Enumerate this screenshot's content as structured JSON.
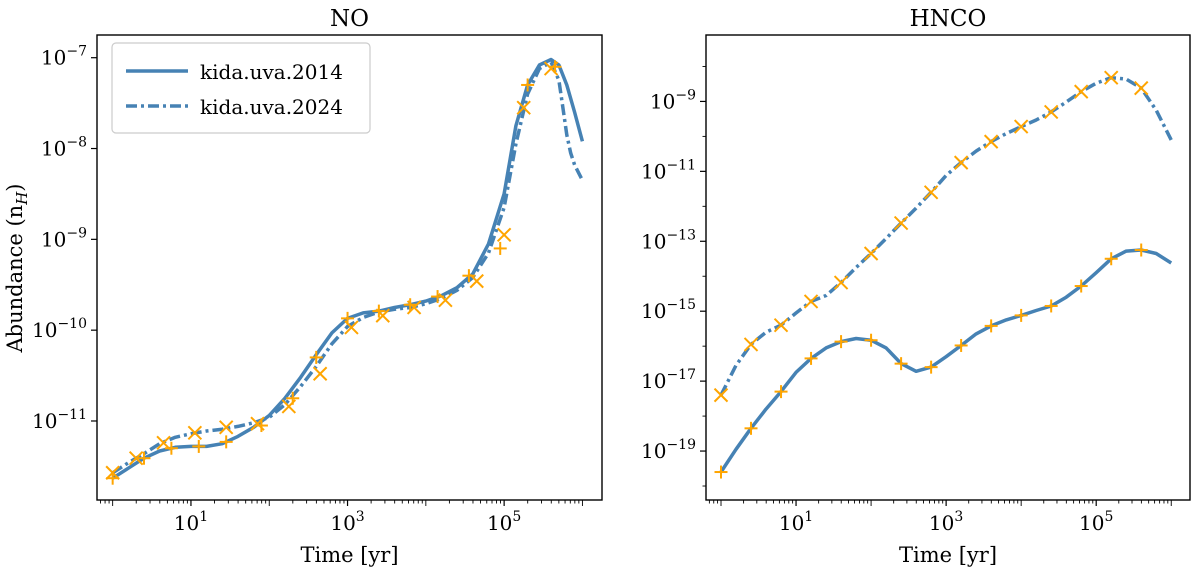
{
  "colors": {
    "line": "#4682b4",
    "marker": "#ffa500",
    "frame": "#000000"
  },
  "legend": {
    "entries": [
      {
        "label": "kida.uva.2014",
        "style": "solid"
      },
      {
        "label": "kida.uva.2024",
        "style": "dashdot"
      }
    ]
  },
  "ylabel_text": "Abundance (n",
  "ylabel_sub": "H",
  "chart_data": [
    {
      "type": "line",
      "title": "NO",
      "xlabel": "Time [yr]",
      "ylabel": "Abundance (n_H)",
      "xscale": "log",
      "yscale": "log",
      "xlim_log10": [
        -0.2,
        6.25
      ],
      "ylim_log10": [
        -11.87,
        -6.75
      ],
      "xticks": [
        {
          "base": "10",
          "exp": "1",
          "log": 1
        },
        {
          "base": "10",
          "exp": "3",
          "log": 3
        },
        {
          "base": "10",
          "exp": "5",
          "log": 5
        }
      ],
      "yticks": [
        {
          "base": "10",
          "exp": "−11",
          "log": -11
        },
        {
          "base": "10",
          "exp": "−10",
          "log": -10
        },
        {
          "base": "10",
          "exp": "−9",
          "log": -9
        },
        {
          "base": "10",
          "exp": "−8",
          "log": -8
        },
        {
          "base": "10",
          "exp": "−7",
          "log": -7
        }
      ],
      "legend_position": "upper left",
      "series": [
        {
          "name": "kida.uva.2014",
          "style": "solid",
          "marker": "+",
          "x_log10": [
            0,
            0.2,
            0.4,
            0.6,
            0.8,
            1.0,
            1.2,
            1.4,
            1.6,
            1.8,
            2.0,
            2.2,
            2.4,
            2.6,
            2.8,
            3.0,
            3.2,
            3.4,
            3.6,
            3.8,
            4.0,
            4.2,
            4.4,
            4.6,
            4.8,
            5.0,
            5.15,
            5.3,
            5.45,
            5.6,
            5.7,
            5.8,
            5.9,
            6.0
          ],
          "y_log10": [
            -11.63,
            -11.52,
            -11.41,
            -11.33,
            -11.29,
            -11.28,
            -11.28,
            -11.25,
            -11.17,
            -11.07,
            -10.94,
            -10.75,
            -10.52,
            -10.27,
            -10.03,
            -9.87,
            -9.81,
            -9.79,
            -9.75,
            -9.72,
            -9.68,
            -9.62,
            -9.53,
            -9.38,
            -9.05,
            -8.5,
            -7.75,
            -7.3,
            -7.08,
            -7.02,
            -7.08,
            -7.3,
            -7.6,
            -7.92
          ],
          "markers_x_log10": [
            0,
            0.4,
            0.75,
            1.1,
            1.45,
            1.9,
            2.3,
            2.6,
            3.0,
            3.4,
            3.8,
            4.15,
            4.55,
            4.95,
            5.3,
            5.65
          ],
          "markers_y_log10": [
            -11.63,
            -11.41,
            -11.3,
            -11.28,
            -11.23,
            -11.05,
            -10.75,
            -10.3,
            -9.87,
            -9.79,
            -9.72,
            -9.63,
            -9.4,
            -9.1,
            -7.3,
            -7.1
          ]
        },
        {
          "name": "kida.uva.2024",
          "style": "dashdot",
          "marker": "x",
          "x_log10": [
            0,
            0.2,
            0.4,
            0.6,
            0.8,
            1.0,
            1.2,
            1.4,
            1.6,
            1.8,
            2.0,
            2.2,
            2.4,
            2.6,
            2.8,
            3.0,
            3.2,
            3.4,
            3.6,
            3.8,
            4.0,
            4.2,
            4.4,
            4.6,
            4.8,
            5.0,
            5.15,
            5.3,
            5.45,
            5.6,
            5.7,
            5.75,
            5.8,
            5.85,
            5.9,
            6.0
          ],
          "y_log10": [
            -11.57,
            -11.46,
            -11.36,
            -11.25,
            -11.18,
            -11.14,
            -11.11,
            -11.09,
            -11.06,
            -11.02,
            -10.96,
            -10.82,
            -10.62,
            -10.4,
            -10.15,
            -9.96,
            -9.86,
            -9.8,
            -9.77,
            -9.75,
            -9.71,
            -9.65,
            -9.56,
            -9.42,
            -9.15,
            -8.65,
            -7.95,
            -7.4,
            -7.12,
            -7.05,
            -7.25,
            -7.55,
            -7.85,
            -8.05,
            -8.18,
            -8.35
          ],
          "markers_x_log10": [
            0,
            0.3,
            0.65,
            1.05,
            1.45,
            1.85,
            2.25,
            2.65,
            3.05,
            3.45,
            3.85,
            4.25,
            4.65,
            5.0,
            5.25,
            5.6
          ],
          "markers_y_log10": [
            -11.57,
            -11.41,
            -11.24,
            -11.13,
            -11.07,
            -11.03,
            -10.84,
            -10.48,
            -9.97,
            -9.84,
            -9.75,
            -9.67,
            -9.46,
            -8.95,
            -7.55,
            -7.12
          ]
        }
      ]
    },
    {
      "type": "line",
      "title": "HNCO",
      "xlabel": "Time [yr]",
      "ylabel": "",
      "xscale": "log",
      "yscale": "log",
      "xlim_log10": [
        -0.2,
        6.25
      ],
      "ylim_log10": [
        -20.4,
        -7.1
      ],
      "xticks": [
        {
          "base": "10",
          "exp": "1",
          "log": 1
        },
        {
          "base": "10",
          "exp": "3",
          "log": 3
        },
        {
          "base": "10",
          "exp": "5",
          "log": 5
        }
      ],
      "yticks": [
        {
          "base": "10",
          "exp": "−19",
          "log": -19
        },
        {
          "base": "10",
          "exp": "−17",
          "log": -17
        },
        {
          "base": "10",
          "exp": "−15",
          "log": -15
        },
        {
          "base": "10",
          "exp": "−13",
          "log": -13
        },
        {
          "base": "10",
          "exp": "−11",
          "log": -11
        },
        {
          "base": "10",
          "exp": "−9",
          "log": -9
        }
      ],
      "series": [
        {
          "name": "kida.uva.2014",
          "style": "solid",
          "marker": "+",
          "x_log10": [
            0,
            0.2,
            0.4,
            0.6,
            0.8,
            1.0,
            1.2,
            1.4,
            1.6,
            1.8,
            2.0,
            2.2,
            2.4,
            2.6,
            2.8,
            3.0,
            3.2,
            3.4,
            3.6,
            3.8,
            4.0,
            4.2,
            4.4,
            4.6,
            4.8,
            5.0,
            5.2,
            5.4,
            5.6,
            5.8,
            6.0
          ],
          "y_log10": [
            -19.6,
            -18.95,
            -18.35,
            -17.8,
            -17.3,
            -16.75,
            -16.35,
            -16.05,
            -15.87,
            -15.78,
            -15.83,
            -16.05,
            -16.5,
            -16.72,
            -16.6,
            -16.3,
            -15.98,
            -15.65,
            -15.42,
            -15.25,
            -15.12,
            -14.98,
            -14.85,
            -14.6,
            -14.28,
            -13.9,
            -13.5,
            -13.28,
            -13.25,
            -13.35,
            -13.62
          ],
          "markers_x_log10": [
            0,
            0.4,
            0.8,
            1.2,
            1.6,
            2.0,
            2.4,
            2.8,
            3.2,
            3.6,
            4.0,
            4.4,
            4.8,
            5.2,
            5.6
          ],
          "markers_y_log10": [
            -19.6,
            -18.35,
            -17.3,
            -16.35,
            -15.87,
            -15.83,
            -16.5,
            -16.6,
            -15.98,
            -15.42,
            -15.12,
            -14.85,
            -14.28,
            -13.5,
            -13.25
          ]
        },
        {
          "name": "kida.uva.2024",
          "style": "dashdot",
          "marker": "x",
          "x_log10": [
            0,
            0.2,
            0.4,
            0.6,
            0.8,
            1.0,
            1.2,
            1.4,
            1.6,
            1.8,
            2.0,
            2.2,
            2.4,
            2.6,
            2.8,
            3.0,
            3.2,
            3.4,
            3.6,
            3.8,
            4.0,
            4.2,
            4.4,
            4.6,
            4.8,
            5.0,
            5.2,
            5.4,
            5.6,
            5.8,
            6.0
          ],
          "y_log10": [
            -17.4,
            -16.55,
            -15.95,
            -15.6,
            -15.4,
            -15.05,
            -14.72,
            -14.55,
            -14.18,
            -13.75,
            -13.35,
            -12.92,
            -12.48,
            -12.05,
            -11.6,
            -11.12,
            -10.75,
            -10.42,
            -10.15,
            -9.92,
            -9.72,
            -9.53,
            -9.3,
            -9.02,
            -8.72,
            -8.48,
            -8.32,
            -8.36,
            -8.62,
            -9.25,
            -10.1
          ],
          "markers_x_log10": [
            0,
            0.4,
            0.8,
            1.2,
            1.6,
            2.0,
            2.4,
            2.8,
            3.2,
            3.6,
            4.0,
            4.4,
            4.8,
            5.2,
            5.6
          ],
          "markers_y_log10": [
            -17.4,
            -15.95,
            -15.4,
            -14.72,
            -14.18,
            -13.35,
            -12.48,
            -11.6,
            -10.75,
            -10.15,
            -9.72,
            -9.3,
            -8.72,
            -8.32,
            -8.62
          ]
        }
      ]
    }
  ]
}
